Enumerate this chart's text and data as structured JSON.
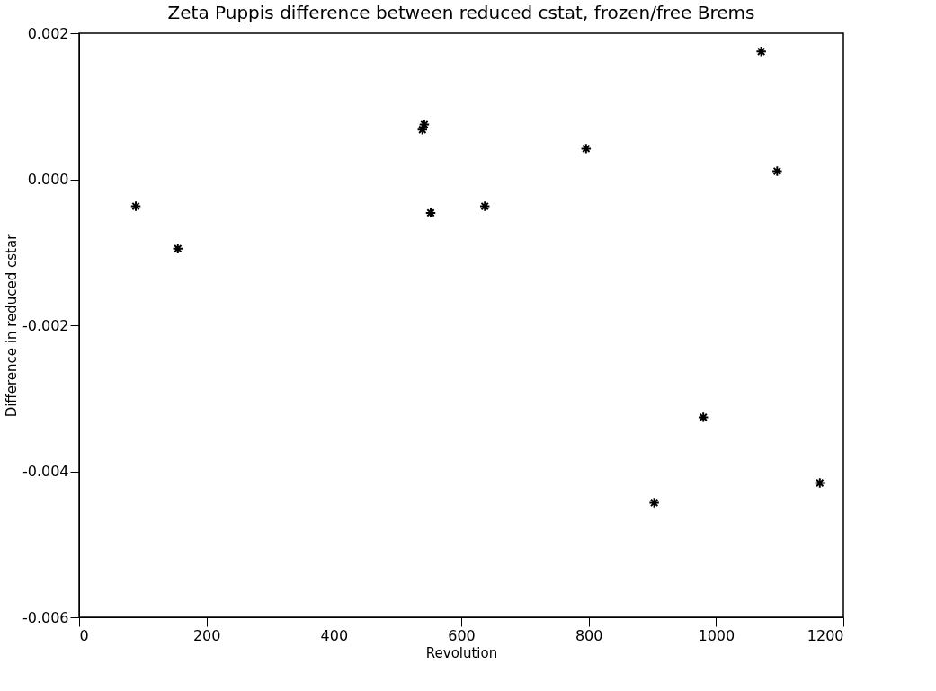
{
  "chart_data": {
    "type": "scatter",
    "title": "Zeta Puppis difference between reduced cstat, frozen/free Brems",
    "xlabel": "Revolution",
    "ylabel": "Difference in reduced cstar",
    "x": [
      89,
      155,
      539,
      542,
      552,
      637,
      796,
      903,
      980,
      1071,
      1096,
      1163
    ],
    "series": [
      {
        "color": "#000000",
        "values": [
          -0.00037,
          -0.00095,
          0.00068,
          0.00075,
          -0.00046,
          -0.00037,
          0.00042,
          -0.00443,
          -0.00326,
          0.00175,
          0.00011,
          -0.00416
        ]
      }
    ],
    "xlim": [
      0,
      1200
    ],
    "xticks": [
      0,
      200,
      400,
      600,
      800,
      1000,
      1200
    ],
    "ylim": [
      -0.006,
      0.002
    ],
    "yticks": [
      -0.006,
      -0.004,
      -0.002,
      {
        "value": 0,
        "label": "0.000"
      },
      0.002
    ],
    "marker": "cross",
    "grid": false
  }
}
